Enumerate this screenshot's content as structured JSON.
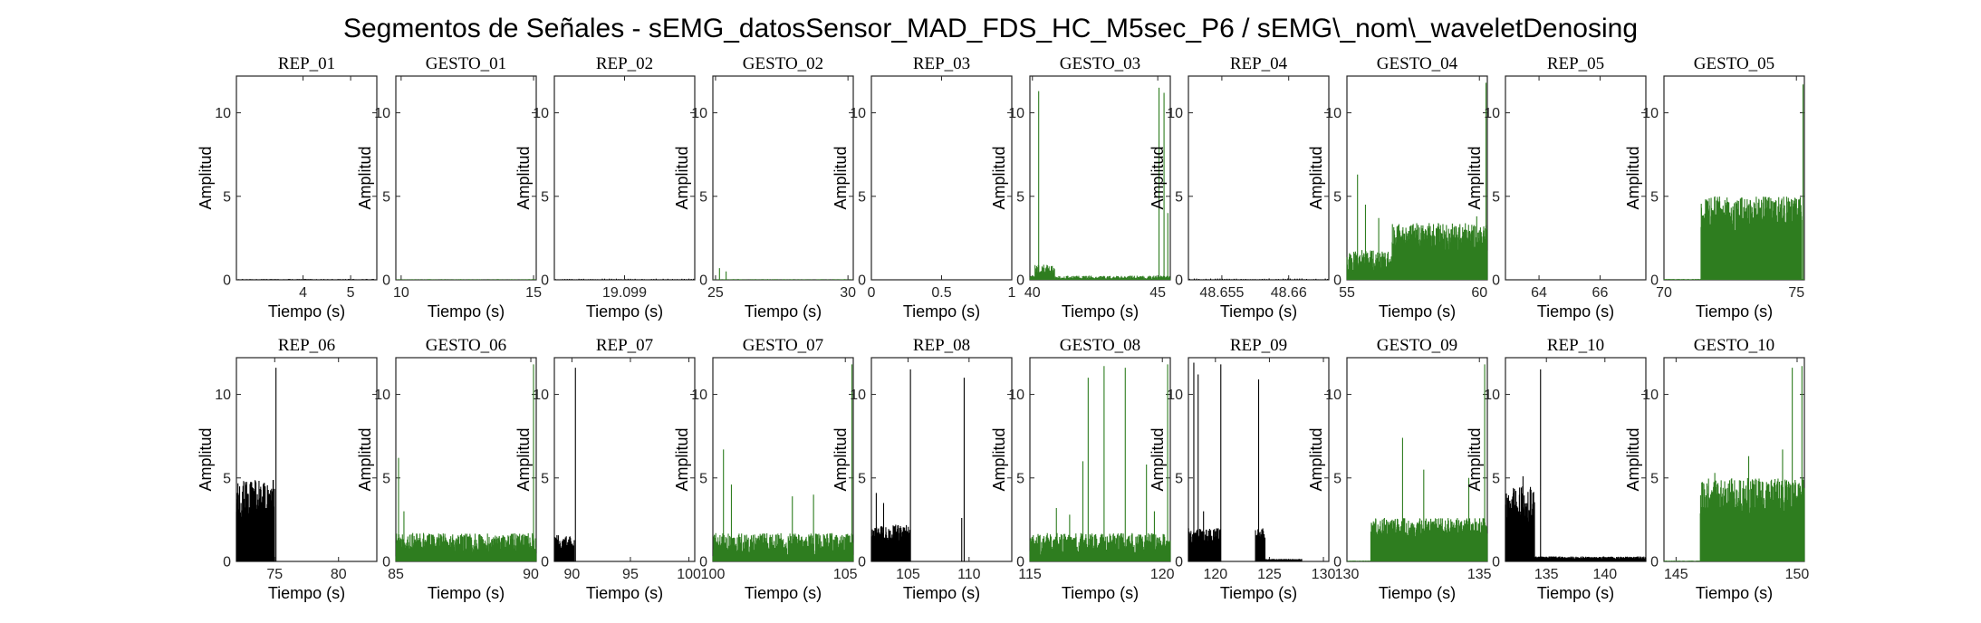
{
  "figure_title": "Segmentos de Señales - sEMG_datosSensor_MAD_FDS_HC_M5sec_P6 / sEMG\\_nom\\_waveletDenosing",
  "colors": {
    "rep": "#000000",
    "gesto": "#2e7d1f"
  },
  "chart_data": [
    {
      "type": "line",
      "title": "REP_01",
      "kind": "rep",
      "xlabel": "Tiempo (s)",
      "ylabel": "Amplitud",
      "xlim": [
        2.6,
        5.55
      ],
      "ylim": [
        0,
        12.2
      ],
      "xticks": [
        4,
        5
      ],
      "xticklabels": [
        "4",
        "5"
      ],
      "yticks": [
        0,
        5,
        10
      ],
      "profile": {
        "n": 150,
        "base": 0.0,
        "amp": 0.05,
        "bursts": [],
        "spikes": []
      }
    },
    {
      "type": "line",
      "title": "GESTO_01",
      "kind": "gesto",
      "xlabel": "Tiempo (s)",
      "ylabel": "Amplitud",
      "xlim": [
        9.8,
        15.1
      ],
      "ylim": [
        0,
        12.2
      ],
      "xticks": [
        10,
        15
      ],
      "xticklabels": [
        "10",
        "15"
      ],
      "yticks": [
        0,
        5,
        10
      ],
      "profile": {
        "n": 150,
        "base": 0.0,
        "amp": 0.04,
        "bursts": [],
        "spikes": []
      }
    },
    {
      "type": "line",
      "title": "REP_02",
      "kind": "rep",
      "xlabel": "Tiempo (s)",
      "ylabel": "Amplitud",
      "xlim": [
        19.0975,
        19.1005
      ],
      "ylim": [
        0,
        12.2
      ],
      "xticks": [
        19.099
      ],
      "xticklabels": [
        "19.099"
      ],
      "yticks": [
        0,
        5,
        10
      ],
      "profile": {
        "n": 60,
        "base": 0.02,
        "amp": 0.05,
        "bursts": [],
        "spikes": []
      }
    },
    {
      "type": "line",
      "title": "GESTO_02",
      "kind": "gesto",
      "xlabel": "Tiempo (s)",
      "ylabel": "Amplitud",
      "xlim": [
        24.9,
        30.2
      ],
      "ylim": [
        0,
        12.2
      ],
      "xticks": [
        25,
        30
      ],
      "xticklabels": [
        "25",
        "30"
      ],
      "yticks": [
        0,
        5,
        10
      ],
      "profile": {
        "n": 150,
        "base": 0.0,
        "amp": 0.04,
        "bursts": [],
        "spikes": [
          [
            25.15,
            0.7
          ],
          [
            25.4,
            0.5
          ]
        ]
      }
    },
    {
      "type": "line",
      "title": "REP_03",
      "kind": "rep",
      "xlabel": "Tiempo (s)",
      "ylabel": "Amplitud",
      "xlim": [
        0,
        1
      ],
      "ylim": [
        0,
        12.2
      ],
      "xticks": [
        0,
        0.5,
        1
      ],
      "xticklabels": [
        "0",
        "0.5",
        "1"
      ],
      "yticks": [
        0,
        5,
        10
      ],
      "profile": {
        "n": 2,
        "base": 0.0,
        "amp": 0.0,
        "bursts": [],
        "spikes": []
      }
    },
    {
      "type": "line",
      "title": "GESTO_03",
      "kind": "gesto",
      "xlabel": "Tiempo (s)",
      "ylabel": "Amplitud",
      "xlim": [
        39.9,
        45.5
      ],
      "ylim": [
        0,
        12.2
      ],
      "xticks": [
        40,
        45
      ],
      "xticklabels": [
        "40",
        "45"
      ],
      "yticks": [
        0,
        5,
        10
      ],
      "profile": {
        "n": 260,
        "base": 0.05,
        "amp": 0.2,
        "bursts": [
          [
            40.1,
            40.9,
            0.9
          ]
        ],
        "spikes": [
          [
            40.25,
            11.3
          ],
          [
            40.45,
            0.9
          ],
          [
            45.05,
            11.5
          ],
          [
            45.25,
            11.2
          ],
          [
            45.4,
            4.0
          ]
        ]
      }
    },
    {
      "type": "line",
      "title": "REP_04",
      "kind": "rep",
      "xlabel": "Tiempo (s)",
      "ylabel": "Amplitud",
      "xlim": [
        48.6525,
        48.663
      ],
      "ylim": [
        0,
        12.2
      ],
      "xticks": [
        48.655,
        48.66
      ],
      "xticklabels": [
        "48.655",
        "48.66"
      ],
      "yticks": [
        0,
        5,
        10
      ],
      "profile": {
        "n": 60,
        "base": 0.02,
        "amp": 0.06,
        "bursts": [],
        "spikes": []
      }
    },
    {
      "type": "line",
      "title": "GESTO_04",
      "kind": "gesto",
      "xlabel": "Tiempo (s)",
      "ylabel": "Amplitud",
      "xlim": [
        55,
        60.3
      ],
      "ylim": [
        0,
        12.2
      ],
      "xticks": [
        55,
        60
      ],
      "xticklabels": [
        "55",
        "60"
      ],
      "yticks": [
        0,
        5,
        10
      ],
      "profile": {
        "n": 520,
        "base": 0.2,
        "amp": 1.6,
        "bursts": [
          [
            56.7,
            60.3,
            3.4
          ]
        ],
        "spikes": [
          [
            55.4,
            6.3
          ],
          [
            55.7,
            4.5
          ],
          [
            56.2,
            3.7
          ],
          [
            59.9,
            3.8
          ],
          [
            60.25,
            11.8
          ]
        ]
      }
    },
    {
      "type": "line",
      "title": "REP_05",
      "kind": "rep",
      "xlabel": "Tiempo (s)",
      "ylabel": "Amplitud",
      "xlim": [
        62.9,
        67.5
      ],
      "ylim": [
        0,
        12.2
      ],
      "xticks": [
        64,
        66
      ],
      "xticklabels": [
        "64",
        "66"
      ],
      "yticks": [
        0,
        5,
        10
      ],
      "profile": {
        "n": 2,
        "base": 0.0,
        "amp": 0.0,
        "bursts": [],
        "spikes": []
      }
    },
    {
      "type": "line",
      "title": "GESTO_05",
      "kind": "gesto",
      "xlabel": "Tiempo (s)",
      "ylabel": "Amplitud",
      "xlim": [
        70,
        75.3
      ],
      "ylim": [
        0,
        12.2
      ],
      "xticks": [
        70,
        75
      ],
      "xticklabels": [
        "70",
        "75"
      ],
      "yticks": [
        0,
        5,
        10
      ],
      "profile": {
        "n": 600,
        "base": 0.0,
        "amp": 0.05,
        "bursts": [
          [
            71.4,
            75.2,
            5.0
          ]
        ],
        "spikes": [
          [
            75.25,
            11.7
          ]
        ]
      }
    },
    {
      "type": "line",
      "title": "REP_06",
      "kind": "rep",
      "xlabel": "Tiempo (s)",
      "ylabel": "Amplitud",
      "xlim": [
        72,
        83
      ],
      "ylim": [
        0,
        12.2
      ],
      "xticks": [
        75,
        80
      ],
      "xticklabels": [
        "75",
        "80"
      ],
      "yticks": [
        0,
        5,
        10
      ],
      "profile": {
        "n": 500,
        "base": 0.0,
        "amp": 0.0,
        "bursts": [
          [
            72,
            75.0,
            4.9
          ]
        ],
        "spikes": [
          [
            75.1,
            11.6
          ]
        ]
      }
    },
    {
      "type": "line",
      "title": "GESTO_06",
      "kind": "gesto",
      "xlabel": "Tiempo (s)",
      "ylabel": "Amplitud",
      "xlim": [
        85,
        90.2
      ],
      "ylim": [
        0,
        12.2
      ],
      "xticks": [
        85,
        90
      ],
      "xticklabels": [
        "85",
        "90"
      ],
      "yticks": [
        0,
        5,
        10
      ],
      "profile": {
        "n": 520,
        "base": 0.3,
        "amp": 1.4,
        "bursts": [],
        "spikes": [
          [
            85.1,
            6.2
          ],
          [
            85.3,
            3.0
          ],
          [
            90.1,
            11.8
          ]
        ]
      }
    },
    {
      "type": "line",
      "title": "REP_07",
      "kind": "rep",
      "xlabel": "Tiempo (s)",
      "ylabel": "Amplitud",
      "xlim": [
        88.5,
        100.5
      ],
      "ylim": [
        0,
        12.2
      ],
      "xticks": [
        90,
        95,
        100
      ],
      "xticklabels": [
        "90",
        "95",
        "100"
      ],
      "yticks": [
        0,
        5,
        10
      ],
      "profile": {
        "n": 300,
        "base": 0.0,
        "amp": 0.0,
        "bursts": [
          [
            88.5,
            90.2,
            1.6
          ]
        ],
        "spikes": [
          [
            90.3,
            11.6
          ]
        ]
      }
    },
    {
      "type": "line",
      "title": "GESTO_07",
      "kind": "gesto",
      "xlabel": "Tiempo (s)",
      "ylabel": "Amplitud",
      "xlim": [
        100,
        105.3
      ],
      "ylim": [
        0,
        12.2
      ],
      "xticks": [
        100,
        105
      ],
      "xticklabels": [
        "100",
        "105"
      ],
      "yticks": [
        0,
        5,
        10
      ],
      "profile": {
        "n": 560,
        "base": 0.1,
        "amp": 1.6,
        "bursts": [],
        "spikes": [
          [
            100.4,
            6.7
          ],
          [
            100.7,
            4.6
          ],
          [
            103.0,
            3.9
          ],
          [
            103.8,
            4.0
          ],
          [
            105.25,
            11.8
          ]
        ]
      }
    },
    {
      "type": "line",
      "title": "REP_08",
      "kind": "rep",
      "xlabel": "Tiempo (s)",
      "ylabel": "Amplitud",
      "xlim": [
        102,
        113.5
      ],
      "ylim": [
        0,
        12.2
      ],
      "xticks": [
        105,
        110
      ],
      "xticklabels": [
        "105",
        "110"
      ],
      "yticks": [
        0,
        5,
        10
      ],
      "profile": {
        "n": 500,
        "base": 0.0,
        "amp": 0.0,
        "bursts": [
          [
            102,
            105.2,
            2.2
          ]
        ],
        "spikes": [
          [
            102.4,
            4.1
          ],
          [
            103.0,
            3.5
          ],
          [
            105.2,
            11.5
          ],
          [
            109.4,
            2.6
          ],
          [
            109.6,
            11.0
          ]
        ]
      }
    },
    {
      "type": "line",
      "title": "GESTO_08",
      "kind": "gesto",
      "xlabel": "Tiempo (s)",
      "ylabel": "Amplitud",
      "xlim": [
        115,
        120.3
      ],
      "ylim": [
        0,
        12.2
      ],
      "xticks": [
        115,
        120
      ],
      "xticklabels": [
        "115",
        "120"
      ],
      "yticks": [
        0,
        5,
        10
      ],
      "profile": {
        "n": 560,
        "base": 0.2,
        "amp": 1.5,
        "bursts": [],
        "spikes": [
          [
            116.0,
            3.2
          ],
          [
            116.5,
            2.8
          ],
          [
            117.0,
            6.0
          ],
          [
            117.2,
            11.0
          ],
          [
            117.8,
            11.7
          ],
          [
            118.6,
            11.6
          ],
          [
            119.4,
            5.8
          ],
          [
            119.7,
            3.0
          ],
          [
            120.2,
            11.8
          ]
        ]
      }
    },
    {
      "type": "line",
      "title": "REP_09",
      "kind": "rep",
      "xlabel": "Tiempo (s)",
      "ylabel": "Amplitud",
      "xlim": [
        117.5,
        130.5
      ],
      "ylim": [
        0,
        12.2
      ],
      "xticks": [
        120,
        125,
        130
      ],
      "xticklabels": [
        "120",
        "125",
        "130"
      ],
      "yticks": [
        0,
        5,
        10
      ],
      "profile": {
        "n": 520,
        "base": 0.0,
        "amp": 0.0,
        "bursts": [
          [
            117.5,
            120.5,
            2.0
          ],
          [
            123.7,
            124.6,
            2.0
          ],
          [
            124.6,
            128.0,
            0.15
          ]
        ],
        "spikes": [
          [
            118.0,
            11.9
          ],
          [
            118.4,
            11.2
          ],
          [
            118.9,
            3.0
          ],
          [
            120.5,
            11.8
          ],
          [
            124.0,
            10.9
          ]
        ]
      }
    },
    {
      "type": "line",
      "title": "GESTO_09",
      "kind": "gesto",
      "xlabel": "Tiempo (s)",
      "ylabel": "Amplitud",
      "xlim": [
        130,
        135.3
      ],
      "ylim": [
        0,
        12.2
      ],
      "xticks": [
        130,
        135
      ],
      "xticklabels": [
        "130",
        "135"
      ],
      "yticks": [
        0,
        5,
        10
      ],
      "profile": {
        "n": 560,
        "base": 0.0,
        "amp": 0.05,
        "bursts": [
          [
            130.9,
            135.3,
            2.6
          ]
        ],
        "spikes": [
          [
            131.0,
            2.4
          ],
          [
            132.1,
            7.4
          ],
          [
            132.9,
            5.5
          ],
          [
            134.6,
            5.0
          ],
          [
            135.2,
            11.8
          ]
        ]
      }
    },
    {
      "type": "line",
      "title": "REP_10",
      "kind": "rep",
      "xlabel": "Tiempo (s)",
      "ylabel": "Amplitud",
      "xlim": [
        131.5,
        143.5
      ],
      "ylim": [
        0,
        12.2
      ],
      "xticks": [
        135,
        140
      ],
      "xticklabels": [
        "135",
        "140"
      ],
      "yticks": [
        0,
        5,
        10
      ],
      "profile": {
        "n": 520,
        "base": 0.0,
        "amp": 0.0,
        "bursts": [
          [
            131.5,
            134.0,
            4.5
          ],
          [
            134.0,
            143.5,
            0.3
          ]
        ],
        "spikes": [
          [
            133.0,
            5.1
          ],
          [
            134.5,
            11.5
          ]
        ]
      }
    },
    {
      "type": "line",
      "title": "GESTO_10",
      "kind": "gesto",
      "xlabel": "Tiempo (s)",
      "ylabel": "Amplitud",
      "xlim": [
        144.5,
        150.3
      ],
      "ylim": [
        0,
        12.2
      ],
      "xticks": [
        145,
        150
      ],
      "xticklabels": [
        "145",
        "150"
      ],
      "yticks": [
        0,
        5,
        10
      ],
      "profile": {
        "n": 600,
        "base": 0.0,
        "amp": 0.05,
        "bursts": [
          [
            146.0,
            150.3,
            5.0
          ]
        ],
        "spikes": [
          [
            146.6,
            5.3
          ],
          [
            148.0,
            6.3
          ],
          [
            149.4,
            6.7
          ],
          [
            149.8,
            11.6
          ],
          [
            150.2,
            11.7
          ]
        ]
      }
    }
  ]
}
